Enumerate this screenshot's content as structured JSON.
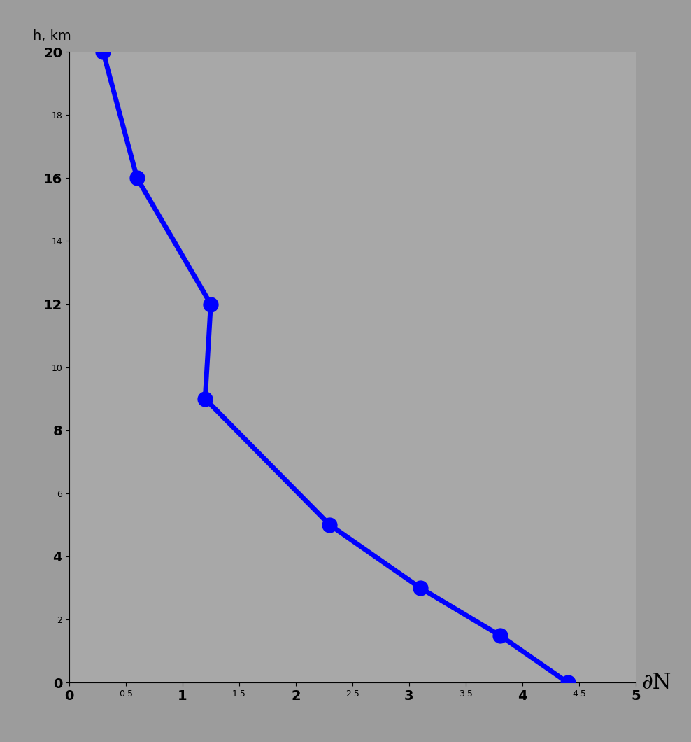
{
  "chart_data": {
    "type": "line",
    "x_label": "∂N",
    "y_label": "h, km",
    "x": [
      4.4,
      3.8,
      3.1,
      2.3,
      1.2,
      1.25,
      0.6,
      0.3
    ],
    "values": [
      0,
      1.5,
      3,
      5,
      9,
      12,
      16,
      20
    ],
    "color": "#0000ff",
    "marker": "o",
    "line_style": "solid",
    "xlim": [
      0,
      5
    ],
    "ylim": [
      0,
      20
    ],
    "xticks": [
      0,
      0.5,
      1,
      1.5,
      2,
      2.5,
      3,
      3.5,
      4,
      4.5,
      5
    ],
    "yticks": [
      0,
      2,
      4,
      6,
      8,
      10,
      12,
      14,
      16,
      18,
      20
    ],
    "grid": false
  }
}
